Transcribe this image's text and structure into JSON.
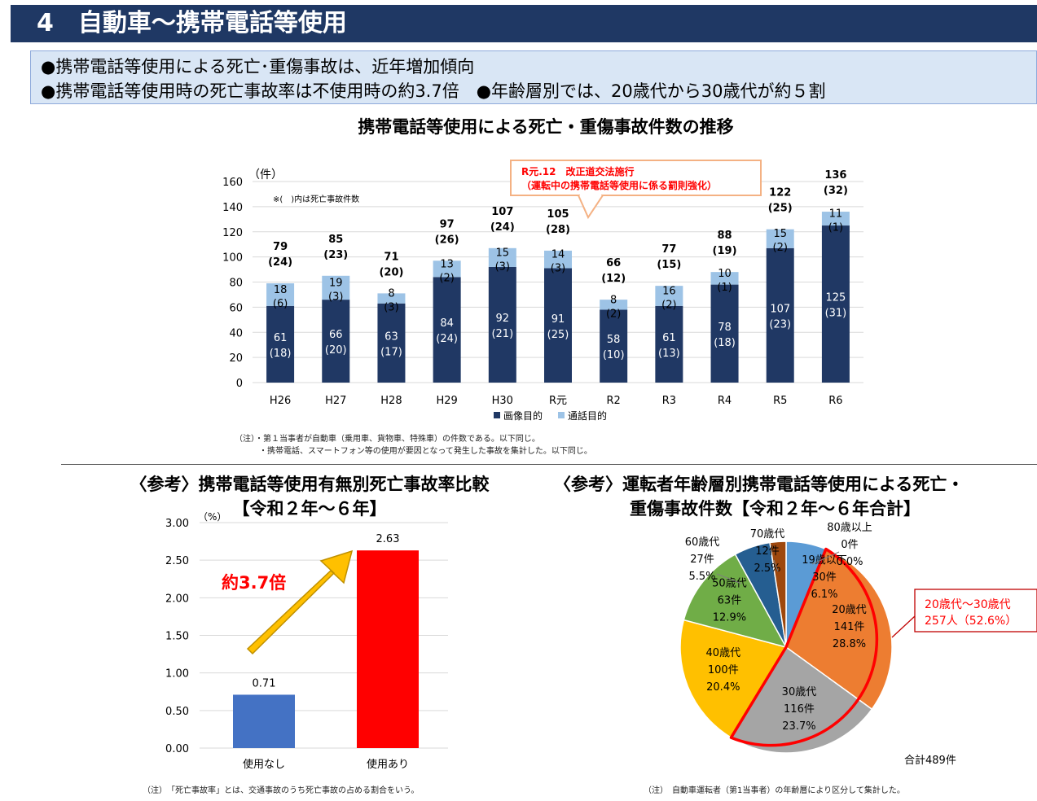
{
  "header": {
    "title": "4　自動車～携帯電話等使用"
  },
  "summary": {
    "line1": "●携帯電話等使用による死亡･重傷事故は、近年増加傾向",
    "line2": "●携帯電話等使用時の死亡事故率は不使用時の約3.7倍　●年齢層別では、20歳代から30歳代が約５割"
  },
  "colors": {
    "header_bg": "#1f3864",
    "bar_dark": "#203864",
    "bar_light": "#9dc3e6",
    "red": "#ff0000",
    "blue": "#4472c4",
    "arrow": "#ffc000",
    "callout_border": "#f4b183"
  },
  "chart_data": [
    {
      "type": "bar",
      "stacked": true,
      "title": "携帯電話等使用による死亡・重傷事故件数の推移",
      "ylabel": "（件）",
      "ylim": [
        0,
        160
      ],
      "yticks": [
        0,
        20,
        40,
        60,
        80,
        100,
        120,
        140,
        160
      ],
      "note_in_plot": "※(　)内は死亡事故件数",
      "categories": [
        "H26",
        "H27",
        "H28",
        "H29",
        "H30",
        "R元",
        "R2",
        "R3",
        "R4",
        "R5",
        "R6"
      ],
      "series": [
        {
          "name": "画像目的",
          "values": [
            61,
            66,
            63,
            84,
            92,
            91,
            58,
            61,
            78,
            107,
            125
          ],
          "deaths": [
            "(18)",
            "(20)",
            "(17)",
            "(24)",
            "(21)",
            "(25)",
            "(10)",
            "(13)",
            "(18)",
            "(23)",
            "(31)"
          ]
        },
        {
          "name": "通話目的",
          "values": [
            18,
            19,
            8,
            13,
            15,
            14,
            8,
            16,
            10,
            15,
            11
          ],
          "deaths": [
            "(6)",
            "(3)",
            "(3)",
            "(2)",
            "(3)",
            "(3)",
            "(2)",
            "(2)",
            "(1)",
            "(2)",
            "(1)"
          ]
        }
      ],
      "totals": [
        79,
        85,
        71,
        97,
        107,
        105,
        66,
        77,
        88,
        122,
        136
      ],
      "total_deaths": [
        "(24)",
        "(23)",
        "(20)",
        "(26)",
        "(24)",
        "(28)",
        "(12)",
        "(15)",
        "(19)",
        "(25)",
        "(32)"
      ],
      "callout": {
        "line1": "R元.12　改正道交法施行",
        "line2": "（運転中の携帯電話等使用に係る罰則強化）"
      },
      "notes": [
        "（注）・第１当事者が自動車（乗用車、貨物車、特殊車）の件数である。以下同じ。",
        "　　　・携帯電話、スマートフォン等の使用が要因となって発生した事故を集計した。以下同じ。"
      ]
    },
    {
      "type": "bar",
      "title_line1": "〈参考〉携帯電話等使用有無別死亡事故率比較",
      "title_line2": "【令和２年～６年】",
      "ylabel": "（%）",
      "ylim": [
        0,
        3
      ],
      "yticks": [
        "0.00",
        "0.50",
        "1.00",
        "1.50",
        "2.00",
        "2.50",
        "3.00"
      ],
      "categories": [
        "使用なし",
        "使用あり"
      ],
      "values": [
        0.71,
        2.63
      ],
      "value_labels": [
        "0.71",
        "2.63"
      ],
      "annotation": "約3.7倍",
      "note": "（注）　「死亡事故率」とは、交通事故のうち死亡事故の占める割合をいう。"
    },
    {
      "type": "pie",
      "title_line1": "〈参考〉運転者年齢層別携帯電話等使用による死亡・",
      "title_line2": "重傷事故件数【令和２年～６年合計】",
      "slices": [
        {
          "name": "19歳以下",
          "value": 30,
          "count": "30件",
          "pct": "6.1%",
          "color": "#5b9bd5"
        },
        {
          "name": "20歳代",
          "value": 141,
          "count": "141件",
          "pct": "28.8%",
          "color": "#ed7d31"
        },
        {
          "name": "30歳代",
          "value": 116,
          "count": "116件",
          "pct": "23.7%",
          "color": "#a5a5a5"
        },
        {
          "name": "40歳代",
          "value": 100,
          "count": "100件",
          "pct": "20.4%",
          "color": "#ffc000"
        },
        {
          "name": "50歳代",
          "value": 63,
          "count": "63件",
          "pct": "12.9%",
          "color": "#70ad47"
        },
        {
          "name": "60歳代",
          "value": 27,
          "count": "27件",
          "pct": "5.5%",
          "color": "#255e91"
        },
        {
          "name": "70歳代",
          "value": 12,
          "count": "12件",
          "pct": "2.5%",
          "color": "#9e480e"
        },
        {
          "name": "80歳以上",
          "value": 0,
          "count": "0件",
          "pct": "0.0%",
          "color": "#636363"
        }
      ],
      "highlight": {
        "line1": "20歳代～30歳代",
        "line2": "257人（52.6%）"
      },
      "total_label": "合計489件",
      "note": "（注）　自動車運転者（第1当事者）の年齢層により区分して集計した。"
    }
  ]
}
